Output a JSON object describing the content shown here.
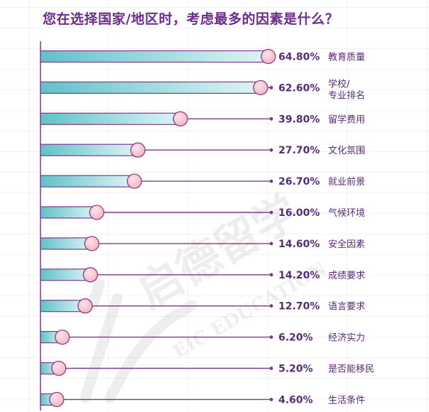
{
  "title": "您在选择国家/地区时，考虑最多的因素是什么？",
  "watermark": {
    "brand_cn": "启德留学",
    "brand_en": "EIC EDUCATION"
  },
  "colors": {
    "title": "#6b2c8c",
    "line": "#7a3a92",
    "bar_fill_dark": "#5fc2c8",
    "bar_fill_light": "#dff4f5",
    "knob_fill": "#f3b3c1",
    "knob_stroke": "#8e3d86",
    "value_text": "#5a2a78"
  },
  "chart_data": {
    "type": "bar",
    "orientation": "horizontal",
    "title": "您在选择国家/地区时，考虑最多的因素是什么？",
    "unit": "%",
    "categories": [
      "教育质量",
      "学校/专业排名",
      "留学费用",
      "文化氛围",
      "就业前景",
      "气候环境",
      "安全因素",
      "成绩要求",
      "语言要求",
      "经济实力",
      "是否能移民",
      "生活条件"
    ],
    "category_display": [
      [
        "教育质量"
      ],
      [
        "学校/",
        "专业排名"
      ],
      [
        "留学费用"
      ],
      [
        "文化氛围"
      ],
      [
        "就业前景"
      ],
      [
        "气候环境"
      ],
      [
        "安全因素"
      ],
      [
        "成绩要求"
      ],
      [
        "语言要求"
      ],
      [
        "经济实力"
      ],
      [
        "是否能移民"
      ],
      [
        "生活条件"
      ]
    ],
    "values": [
      64.8,
      62.6,
      39.8,
      27.7,
      26.7,
      16.0,
      14.6,
      14.2,
      12.7,
      6.2,
      5.2,
      4.6
    ],
    "value_labels": [
      "64.80%",
      "62.60%",
      "39.80%",
      "27.70%",
      "26.70%",
      "16.00%",
      "14.60%",
      "14.20%",
      "12.70%",
      "6.20%",
      "5.20%",
      "4.60%"
    ],
    "xlim": [
      0,
      100
    ],
    "grid": false,
    "legend": "none"
  }
}
